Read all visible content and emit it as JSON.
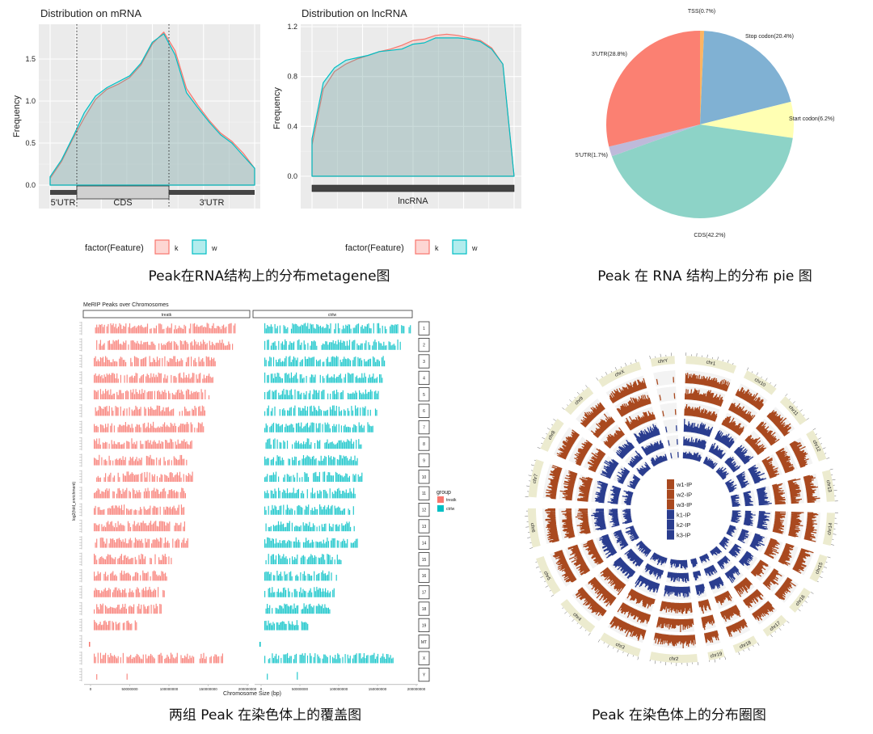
{
  "captions": {
    "metagene": "Peak在RNA结构上的分布metagene图",
    "pie": "Peak 在 RNA 结构上的分布 pie 图",
    "chromosome": "两组 Peak 在染色体上的覆盖图",
    "circos": "Peak 在染色体上的分布圈图"
  },
  "chart_data": [
    {
      "type": "area",
      "title": "Distribution on mRNA",
      "ylabel": "Frequency",
      "yticks": [
        "0.0",
        "0.5",
        "1.0",
        "1.5"
      ],
      "ylim": [
        -0.2,
        1.9
      ],
      "grid": true,
      "features": [
        "5'UTR",
        "CDS",
        "3'UTR"
      ],
      "legend": {
        "title": "factor(Feature)",
        "entries": [
          "k",
          "w"
        ],
        "placement": "bottom"
      },
      "series": [
        {
          "name": "k",
          "color": "#f8766d",
          "values": [
            0.08,
            0.28,
            0.55,
            0.8,
            1.02,
            1.14,
            1.2,
            1.28,
            1.43,
            1.68,
            1.82,
            1.6,
            1.15,
            0.95,
            0.77,
            0.62,
            0.52,
            0.38,
            0.2
          ]
        },
        {
          "name": "w",
          "color": "#00bfc4",
          "values": [
            0.1,
            0.3,
            0.57,
            0.86,
            1.06,
            1.16,
            1.23,
            1.3,
            1.45,
            1.7,
            1.8,
            1.55,
            1.1,
            0.92,
            0.75,
            0.6,
            0.5,
            0.35,
            0.2
          ]
        }
      ]
    },
    {
      "type": "area",
      "title": "Distribution on lncRNA",
      "ylabel": "Frequency",
      "yticks": [
        "0.0",
        "0.4",
        "0.8",
        "1.2"
      ],
      "ylim": [
        -0.1,
        1.2
      ],
      "grid": true,
      "features": [
        "lncRNA"
      ],
      "legend": {
        "title": "factor(Feature)",
        "entries": [
          "k",
          "w"
        ],
        "placement": "bottom"
      },
      "series": [
        {
          "name": "k",
          "color": "#f8766d",
          "values": [
            0.25,
            0.7,
            0.84,
            0.9,
            0.94,
            0.97,
            1.0,
            1.02,
            1.05,
            1.09,
            1.1,
            1.13,
            1.14,
            1.13,
            1.11,
            1.09,
            1.03,
            0.9,
            0.0
          ]
        },
        {
          "name": "w",
          "color": "#00bfc4",
          "values": [
            0.3,
            0.75,
            0.87,
            0.93,
            0.95,
            0.97,
            1.0,
            1.01,
            1.02,
            1.06,
            1.07,
            1.11,
            1.11,
            1.11,
            1.1,
            1.08,
            1.02,
            0.9,
            0.0
          ]
        }
      ]
    },
    {
      "type": "pie",
      "slices": [
        {
          "label": "TSS(0.7%)",
          "value": 0.7,
          "color": "#fdb462"
        },
        {
          "label": "Stop codon(20.4%)",
          "value": 20.4,
          "color": "#80b1d3"
        },
        {
          "label": "Start codon(6.2%)",
          "value": 6.2,
          "color": "#ffffb3"
        },
        {
          "label": "CDS(42.2%)",
          "value": 42.2,
          "color": "#8dd3c7"
        },
        {
          "label": "5'UTR(1.7%)",
          "value": 1.7,
          "color": "#bebada"
        },
        {
          "label": "3'UTR(28.8%)",
          "value": 28.8,
          "color": "#fb8072"
        }
      ]
    },
    {
      "type": "bar",
      "title": "MeRIP Peaks over Chromosomes",
      "xlabel": "Chromosome Size (bp)",
      "ylabel": "log2(fold_enrichment)",
      "xticks": [
        "0",
        "50000000",
        "100000000",
        "150000000",
        "200000000"
      ],
      "xlim": [
        0,
        200000000
      ],
      "facets": [
        "treatk",
        "ctrlw"
      ],
      "legend": {
        "title": "group",
        "entries": [
          {
            "name": "treatk",
            "color": "#f8766d"
          },
          {
            "name": "ctrlw",
            "color": "#00bfc4"
          }
        ],
        "placement": "right"
      },
      "chromosomes": [
        "1",
        "2",
        "3",
        "4",
        "5",
        "6",
        "7",
        "8",
        "9",
        "10",
        "11",
        "12",
        "13",
        "14",
        "15",
        "16",
        "17",
        "18",
        "19",
        "MT",
        "X",
        "Y"
      ],
      "chromosome_lengths": [
        195000000,
        182000000,
        160000000,
        157000000,
        152000000,
        150000000,
        145000000,
        130000000,
        125000000,
        131000000,
        122000000,
        120000000,
        121000000,
        125000000,
        104000000,
        98000000,
        95000000,
        91000000,
        61000000,
        16299,
        171000000,
        92000000
      ]
    },
    {
      "type": "circos",
      "chromosomes": [
        "chr1",
        "chr10",
        "chr11",
        "chr12",
        "chr13",
        "chr14",
        "chr15",
        "chr16",
        "chr17",
        "chr18",
        "chr19",
        "chr2",
        "chr3",
        "chr4",
        "chr5",
        "chr6",
        "chr7",
        "chr8",
        "chr9",
        "chrX",
        "chrY"
      ],
      "chromosome_lengths_M": [
        195,
        131,
        122,
        120,
        121,
        125,
        104,
        98,
        95,
        91,
        61,
        182,
        160,
        157,
        152,
        150,
        145,
        130,
        125,
        171,
        92
      ],
      "tracks": [
        {
          "name": "w1-IP",
          "color": "#a9491f"
        },
        {
          "name": "w2-IP",
          "color": "#a9491f"
        },
        {
          "name": "w3-IP",
          "color": "#a9491f"
        },
        {
          "name": "k1-IP",
          "color": "#2a3d8f"
        },
        {
          "name": "k2-IP",
          "color": "#2a3d8f"
        },
        {
          "name": "k3-IP",
          "color": "#2a3d8f"
        }
      ],
      "ideogram_color": "#ecebcf"
    }
  ]
}
